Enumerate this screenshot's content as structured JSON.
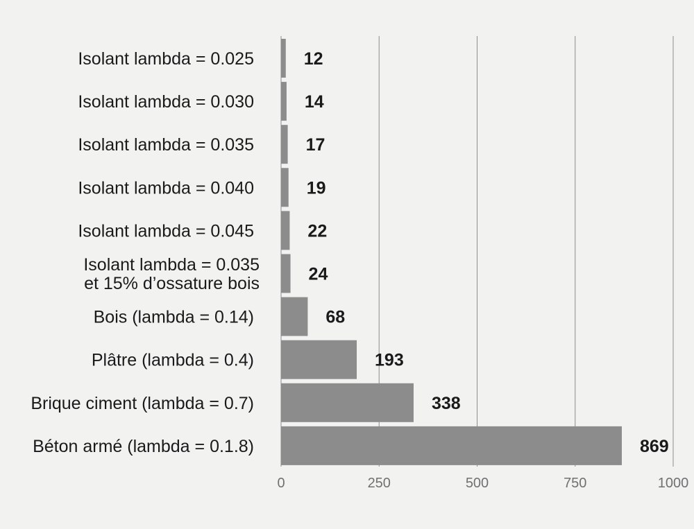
{
  "chart_data": {
    "type": "bar",
    "orientation": "horizontal",
    "title": "",
    "xlabel": "",
    "ylabel": "",
    "xlim": [
      0,
      1000
    ],
    "ticks": [
      0,
      250,
      500,
      750,
      1000
    ],
    "grid": true,
    "legend": "none",
    "bar_color": "#8c8c8c",
    "background_color": "#f2f2f0",
    "categories": [
      "Isolant lambda = 0.025",
      "Isolant lambda = 0.030",
      "Isolant lambda = 0.035",
      "Isolant lambda = 0.040",
      "Isolant lambda = 0.045",
      "Isolant lambda = 0.035\net 15% d’ossature bois",
      "Bois (lambda = 0.14)",
      "Plâtre (lambda = 0.4)",
      "Brique ciment (lambda = 0.7)",
      "Béton armé (lambda = 0.1.8)"
    ],
    "values": [
      12,
      14,
      17,
      19,
      22,
      24,
      68,
      193,
      338,
      869
    ]
  }
}
